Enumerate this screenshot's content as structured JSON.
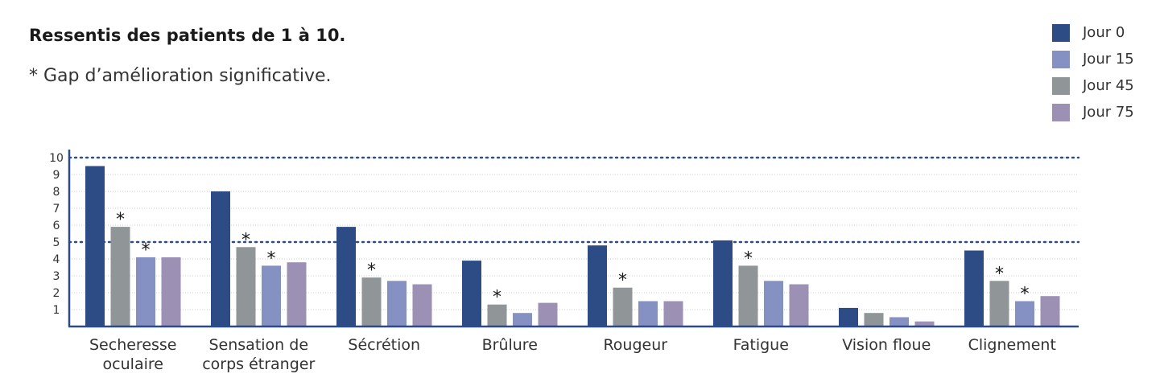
{
  "chart_data": {
    "type": "bar",
    "title": "Ressentis des patients de 1 à 10.",
    "subtitle": "* Gap d’amélioration significative.",
    "ylim": [
      0,
      10
    ],
    "yticks": [
      "10",
      "9",
      "8",
      "7",
      "6",
      "5",
      "4",
      "3",
      "2",
      "1"
    ],
    "reference_lines": [
      10,
      5
    ],
    "categories": [
      [
        "Secheresse",
        "oculaire"
      ],
      [
        "Sensation de",
        "corps étranger"
      ],
      [
        "Sécrétion"
      ],
      [
        "Brûlure"
      ],
      [
        "Rougeur"
      ],
      [
        "Fatigue"
      ],
      [
        "Vision floue"
      ],
      [
        "Clignement"
      ]
    ],
    "series": [
      {
        "name": "Jour 0",
        "color": "#2d4c86",
        "values": [
          9.5,
          8.0,
          5.9,
          3.9,
          4.8,
          5.1,
          1.1,
          4.5
        ]
      },
      {
        "name": "Jour 15",
        "color": "#8590c3",
        "values": [
          4.1,
          3.6,
          2.7,
          0.8,
          1.5,
          2.7,
          0.55,
          1.5
        ]
      },
      {
        "name": "Jour 45",
        "color": "#909598",
        "values": [
          5.9,
          4.7,
          2.9,
          1.3,
          2.3,
          3.6,
          0.8,
          2.7
        ]
      },
      {
        "name": "Jour 75",
        "color": "#9c90b5",
        "values": [
          4.1,
          3.8,
          2.5,
          1.4,
          1.5,
          2.5,
          0.3,
          1.8
        ]
      }
    ],
    "bar_order": [
      "Jour 0",
      "Jour 45",
      "Jour 15",
      "Jour 75"
    ],
    "significance_marker": "*",
    "significance": [
      {
        "category": 0,
        "series": "Jour 45"
      },
      {
        "category": 0,
        "series": "Jour 15"
      },
      {
        "category": 1,
        "series": "Jour 45"
      },
      {
        "category": 1,
        "series": "Jour 15"
      },
      {
        "category": 2,
        "series": "Jour 45"
      },
      {
        "category": 3,
        "series": "Jour 45"
      },
      {
        "category": 4,
        "series": "Jour 45"
      },
      {
        "category": 5,
        "series": "Jour 45"
      },
      {
        "category": 7,
        "series": "Jour 45"
      },
      {
        "category": 7,
        "series": "Jour 15"
      }
    ],
    "legend_position": "top-right",
    "grid": true
  }
}
